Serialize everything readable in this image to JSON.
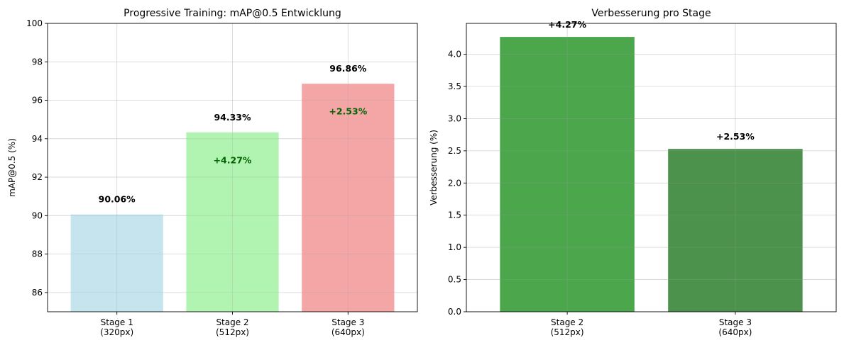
{
  "chart_data": [
    {
      "type": "bar",
      "title": "Progressive Training: mAP@0.5 Entwicklung",
      "xlabel": "",
      "ylabel": "mAP@0.5 (%)",
      "ylim": [
        85,
        100
      ],
      "yticks": [
        86,
        88,
        90,
        92,
        94,
        96,
        98,
        100
      ],
      "grid": true,
      "categories": [
        [
          "Stage 1",
          "(320px)"
        ],
        [
          "Stage 2",
          "(512px)"
        ],
        [
          "Stage 3",
          "(640px)"
        ]
      ],
      "values": [
        90.06,
        94.33,
        96.86
      ],
      "value_labels": [
        "90.06%",
        "94.33%",
        "96.86%"
      ],
      "bar_colors": [
        "#add8e6",
        "#90ee90",
        "#f08080"
      ],
      "bar_opacity": 0.7,
      "improvement_labels": [
        "",
        "+4.27%",
        "+2.53%"
      ],
      "improvement_color": "#006400"
    },
    {
      "type": "bar",
      "title": "Verbesserung pro Stage",
      "xlabel": "",
      "ylabel": "Verbesserung (%)",
      "ylim": [
        0,
        4.48
      ],
      "yticks": [
        "0.0",
        "0.5",
        "1.0",
        "1.5",
        "2.0",
        "2.5",
        "3.0",
        "3.5",
        "4.0"
      ],
      "grid": true,
      "categories": [
        [
          "Stage 2",
          "(512px)"
        ],
        [
          "Stage 3",
          "(640px)"
        ]
      ],
      "values": [
        4.27,
        2.53
      ],
      "value_labels": [
        "+4.27%",
        "+2.53%"
      ],
      "bar_colors": [
        "#008000",
        "#006400"
      ],
      "bar_opacity": 0.7
    }
  ]
}
